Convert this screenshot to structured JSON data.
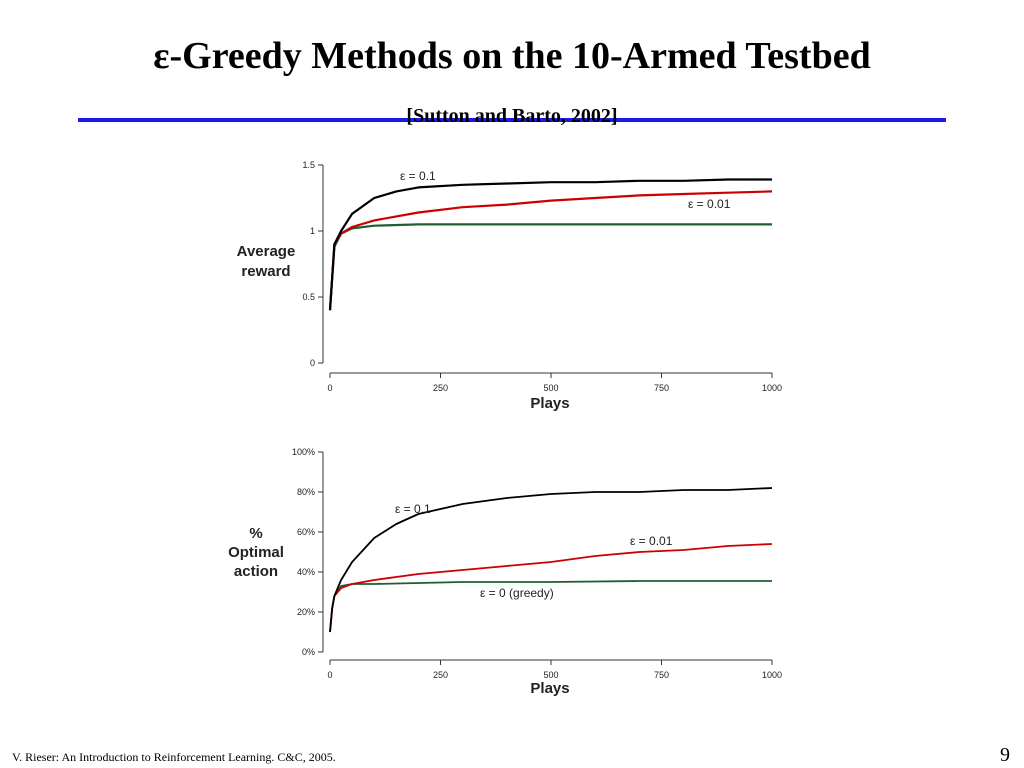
{
  "slide": {
    "title": "ε-Greedy Methods on the 10-Armed Testbed",
    "subtitle": "[Sutton and Barto, 2002]",
    "footer": "V. Rieser: An Introduction to Reinforcement Learning. C&C, 2005.",
    "page_number": "9"
  },
  "chart_data": [
    {
      "type": "line",
      "xlabel": "Plays",
      "ylabel": [
        "Average",
        "reward"
      ],
      "xlim": [
        0,
        1000
      ],
      "ylim": [
        0,
        1.5
      ],
      "x_ticks": [
        "0",
        "250",
        "500",
        "750",
        "1000"
      ],
      "y_ticks": [
        "0",
        "0.5",
        "1",
        "1.5"
      ],
      "series": [
        {
          "name": "ε = 0.1",
          "color": "#000000",
          "x": [
            0,
            10,
            25,
            50,
            100,
            150,
            200,
            300,
            400,
            500,
            600,
            700,
            800,
            900,
            1000
          ],
          "y": [
            0.4,
            0.9,
            1.0,
            1.13,
            1.25,
            1.3,
            1.33,
            1.35,
            1.36,
            1.37,
            1.37,
            1.38,
            1.38,
            1.39,
            1.39
          ]
        },
        {
          "name": "ε = 0.01",
          "color": "#cc0000",
          "x": [
            0,
            10,
            25,
            50,
            100,
            200,
            300,
            400,
            500,
            600,
            700,
            800,
            900,
            1000
          ],
          "y": [
            0.4,
            0.9,
            0.98,
            1.03,
            1.08,
            1.14,
            1.18,
            1.2,
            1.23,
            1.25,
            1.27,
            1.28,
            1.29,
            1.3
          ]
        },
        {
          "name": "ε = 0 (greedy)",
          "color": "#1e5e32",
          "x": [
            0,
            10,
            25,
            50,
            100,
            200,
            400,
            600,
            800,
            1000
          ],
          "y": [
            0.4,
            0.88,
            0.98,
            1.02,
            1.04,
            1.05,
            1.05,
            1.05,
            1.05,
            1.05
          ]
        }
      ],
      "annotations": [
        "ε = 0.1",
        "ε = 0.01"
      ]
    },
    {
      "type": "line",
      "xlabel": "Plays",
      "ylabel": [
        "%",
        "Optimal",
        "action"
      ],
      "xlim": [
        0,
        1000
      ],
      "ylim": [
        0,
        100
      ],
      "x_ticks": [
        "0",
        "250",
        "500",
        "750",
        "1000"
      ],
      "y_ticks": [
        "0%",
        "20%",
        "40%",
        "60%",
        "80%",
        "100%"
      ],
      "series": [
        {
          "name": "ε = 0.1",
          "color": "#000000",
          "x": [
            0,
            5,
            10,
            25,
            50,
            100,
            150,
            200,
            300,
            400,
            500,
            600,
            700,
            800,
            900,
            1000
          ],
          "y": [
            10,
            22,
            28,
            36,
            45,
            57,
            64,
            69,
            74,
            77,
            79,
            80,
            80,
            81,
            81,
            82
          ]
        },
        {
          "name": "ε = 0.01",
          "color": "#cc0000",
          "x": [
            0,
            5,
            10,
            25,
            50,
            100,
            200,
            300,
            400,
            500,
            600,
            700,
            800,
            900,
            1000
          ],
          "y": [
            10,
            22,
            28,
            32,
            34,
            36,
            39,
            41,
            43,
            45,
            48,
            50,
            51,
            53,
            54
          ]
        },
        {
          "name": "ε = 0 (greedy)",
          "color": "#1e5e32",
          "x": [
            0,
            5,
            10,
            25,
            50,
            100,
            300,
            500,
            700,
            850,
            1000
          ],
          "y": [
            10,
            22,
            28,
            33,
            34,
            34,
            35,
            35,
            35.5,
            35.5,
            35.5
          ]
        }
      ],
      "annotations": [
        "ε = 0.1",
        "ε = 0.01",
        "ε = 0 (greedy)"
      ]
    }
  ]
}
